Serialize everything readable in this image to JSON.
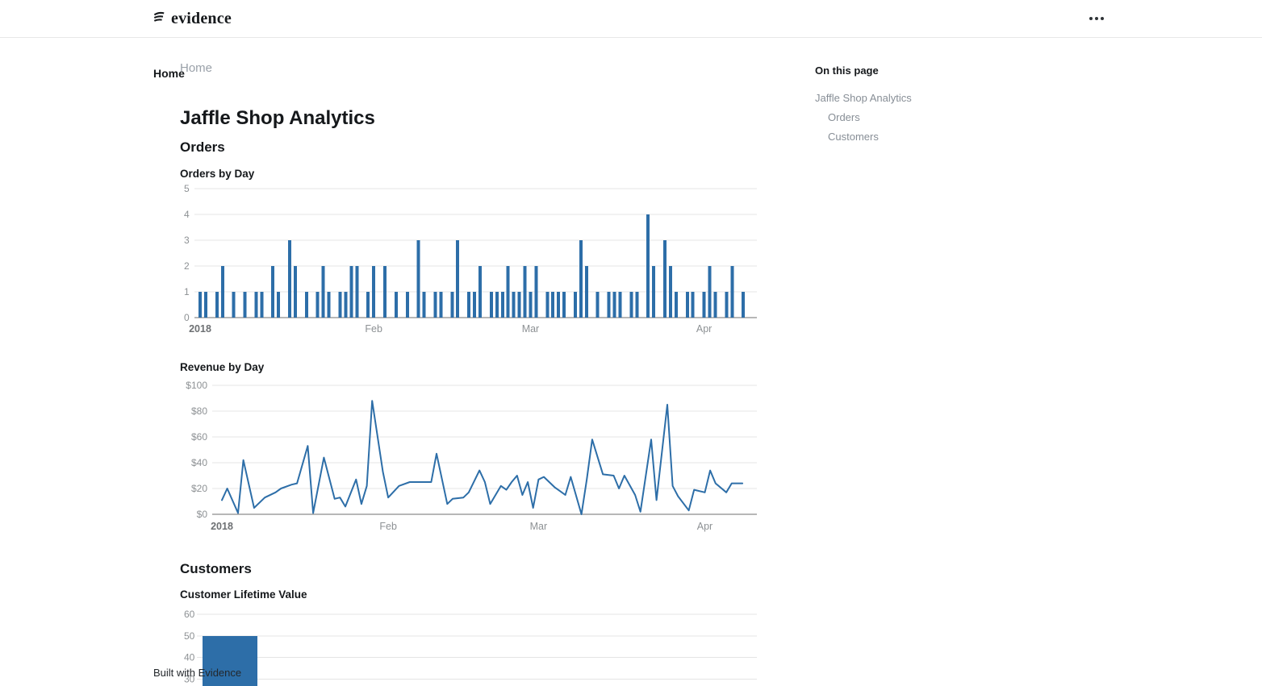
{
  "header": {
    "logo_text": "evidence",
    "menu_icon": "kebab-dots"
  },
  "sidebar": {
    "items": [
      {
        "label": "Home"
      }
    ]
  },
  "breadcrumb": {
    "label": "Home"
  },
  "page": {
    "title": "Jaffle Shop Analytics"
  },
  "sections": [
    {
      "heading": "Orders"
    },
    {
      "heading": "Customers"
    }
  ],
  "toc": {
    "heading": "On this page",
    "items": [
      {
        "label": "Jaffle Shop Analytics",
        "level": 1
      },
      {
        "label": "Orders",
        "level": 2
      },
      {
        "label": "Customers",
        "level": 2
      }
    ]
  },
  "footer": {
    "text": "Built with Evidence"
  },
  "colors": {
    "accent": "#2d6ea8",
    "grid": "#e4e4e4",
    "axis_line": "#6f6f6f",
    "tick_label": "#8d9194",
    "year_label": "#6d7073"
  },
  "chart_data": [
    {
      "id": "orders_by_day",
      "type": "bar",
      "title": "Orders by Day",
      "x_unit": "days_since_2018-01-01",
      "ylim": [
        0,
        5
      ],
      "ytick_values": [
        0,
        1,
        2,
        3,
        4,
        5
      ],
      "ytick_prefix": "",
      "xticks": [
        {
          "day": 0,
          "label": "2018",
          "bold": true
        },
        {
          "day": 31,
          "label": "Feb"
        },
        {
          "day": 59,
          "label": "Mar"
        },
        {
          "day": 90,
          "label": "Apr"
        }
      ],
      "points": [
        [
          0,
          1
        ],
        [
          1,
          1
        ],
        [
          3,
          1
        ],
        [
          4,
          2
        ],
        [
          6,
          1
        ],
        [
          8,
          1
        ],
        [
          10,
          1
        ],
        [
          11,
          1
        ],
        [
          13,
          2
        ],
        [
          14,
          1
        ],
        [
          16,
          3
        ],
        [
          17,
          2
        ],
        [
          19,
          1
        ],
        [
          21,
          1
        ],
        [
          22,
          2
        ],
        [
          23,
          1
        ],
        [
          25,
          1
        ],
        [
          26,
          1
        ],
        [
          27,
          2
        ],
        [
          28,
          2
        ],
        [
          30,
          1
        ],
        [
          31,
          2
        ],
        [
          33,
          2
        ],
        [
          35,
          1
        ],
        [
          37,
          1
        ],
        [
          39,
          3
        ],
        [
          40,
          1
        ],
        [
          42,
          1
        ],
        [
          43,
          1
        ],
        [
          45,
          1
        ],
        [
          46,
          3
        ],
        [
          48,
          1
        ],
        [
          49,
          1
        ],
        [
          50,
          2
        ],
        [
          52,
          1
        ],
        [
          53,
          1
        ],
        [
          54,
          1
        ],
        [
          55,
          2
        ],
        [
          56,
          1
        ],
        [
          57,
          1
        ],
        [
          58,
          2
        ],
        [
          59,
          1
        ],
        [
          60,
          2
        ],
        [
          62,
          1
        ],
        [
          63,
          1
        ],
        [
          64,
          1
        ],
        [
          65,
          1
        ],
        [
          67,
          1
        ],
        [
          68,
          3
        ],
        [
          69,
          2
        ],
        [
          71,
          1
        ],
        [
          73,
          1
        ],
        [
          74,
          1
        ],
        [
          75,
          1
        ],
        [
          77,
          1
        ],
        [
          78,
          1
        ],
        [
          80,
          4
        ],
        [
          81,
          2
        ],
        [
          83,
          3
        ],
        [
          84,
          2
        ],
        [
          85,
          1
        ],
        [
          87,
          1
        ],
        [
          88,
          1
        ],
        [
          90,
          1
        ],
        [
          91,
          2
        ],
        [
          92,
          1
        ],
        [
          94,
          1
        ],
        [
          95,
          2
        ],
        [
          97,
          1
        ]
      ]
    },
    {
      "id": "revenue_by_day",
      "type": "line",
      "title": "Revenue by Day",
      "x_unit": "days_since_2018-01-01",
      "ylim": [
        0,
        100
      ],
      "ytick_values": [
        0,
        20,
        40,
        60,
        80,
        100
      ],
      "ytick_prefix": "$",
      "xticks": [
        {
          "day": 0,
          "label": "2018",
          "bold": true
        },
        {
          "day": 31,
          "label": "Feb"
        },
        {
          "day": 59,
          "label": "Mar"
        },
        {
          "day": 90,
          "label": "Apr"
        }
      ],
      "points": [
        [
          0,
          11
        ],
        [
          1,
          20
        ],
        [
          3,
          1
        ],
        [
          4,
          42
        ],
        [
          6,
          5
        ],
        [
          8,
          13
        ],
        [
          10,
          17
        ],
        [
          11,
          20
        ],
        [
          13,
          23
        ],
        [
          14,
          24
        ],
        [
          16,
          53
        ],
        [
          17,
          1
        ],
        [
          19,
          44
        ],
        [
          21,
          12
        ],
        [
          22,
          13
        ],
        [
          23,
          6
        ],
        [
          25,
          27
        ],
        [
          26,
          8
        ],
        [
          27,
          22
        ],
        [
          28,
          88
        ],
        [
          30,
          33
        ],
        [
          31,
          13
        ],
        [
          33,
          22
        ],
        [
          35,
          25
        ],
        [
          37,
          25
        ],
        [
          39,
          25
        ],
        [
          40,
          47
        ],
        [
          42,
          8
        ],
        [
          43,
          12
        ],
        [
          45,
          13
        ],
        [
          46,
          17
        ],
        [
          48,
          34
        ],
        [
          49,
          25
        ],
        [
          50,
          8
        ],
        [
          52,
          22
        ],
        [
          53,
          19
        ],
        [
          54,
          25
        ],
        [
          55,
          30
        ],
        [
          56,
          15
        ],
        [
          57,
          25
        ],
        [
          58,
          5
        ],
        [
          59,
          27
        ],
        [
          60,
          29
        ],
        [
          62,
          21
        ],
        [
          63,
          18
        ],
        [
          64,
          15
        ],
        [
          65,
          29
        ],
        [
          67,
          0
        ],
        [
          68,
          27
        ],
        [
          69,
          58
        ],
        [
          71,
          31
        ],
        [
          73,
          30
        ],
        [
          74,
          20
        ],
        [
          75,
          30
        ],
        [
          77,
          15
        ],
        [
          78,
          2
        ],
        [
          80,
          58
        ],
        [
          81,
          11
        ],
        [
          83,
          85
        ],
        [
          84,
          22
        ],
        [
          85,
          14
        ],
        [
          87,
          3
        ],
        [
          88,
          19
        ],
        [
          90,
          17
        ],
        [
          91,
          34
        ],
        [
          92,
          24
        ],
        [
          94,
          17
        ],
        [
          95,
          24
        ],
        [
          97,
          24
        ]
      ]
    },
    {
      "id": "customer_lifetime_value",
      "type": "histogram",
      "title": "Customer Lifetime Value",
      "note": "chart truncated by viewport bottom edge",
      "ytick_values": [
        60,
        50,
        40,
        30
      ],
      "ytick_prefix": "",
      "visible_bars": [
        {
          "value": 50
        }
      ]
    }
  ]
}
